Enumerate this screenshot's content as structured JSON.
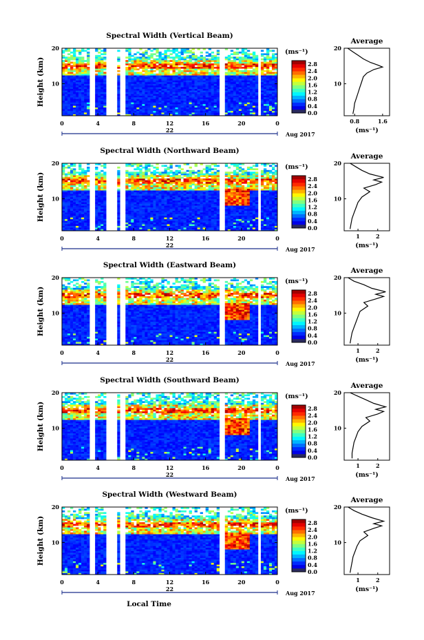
{
  "figure": {
    "xlabel": "Local Time",
    "date_label": "Aug 2017",
    "colorbar_unit": "(ms⁻¹)",
    "average_title": "Average",
    "average_unit": "(ms⁻¹)"
  },
  "chart_data": [
    {
      "type": "heatmap",
      "title": "Spectral Width (Vertical Beam)",
      "ylabel": "Height (km)",
      "x_ticks": [
        "0",
        "4",
        "8",
        "12",
        "16",
        "20",
        "0"
      ],
      "day_label": "22",
      "y_ticks": [
        "20",
        "10"
      ],
      "xlim": [
        0,
        24
      ],
      "ylim": [
        1,
        20
      ],
      "colorbar_ticks": [
        "2.8",
        "2.4",
        "2.0",
        "1.6",
        "1.2",
        "0.8",
        "0.4",
        "0.0"
      ],
      "colorbar_range": [
        0,
        3.0
      ],
      "gaps_hours": [
        [
          3.2,
          3.6
        ],
        [
          4.9,
          6.0
        ],
        [
          6.4,
          7.0
        ],
        [
          17.6,
          18.0
        ],
        [
          21.8,
          22.2
        ],
        [
          23.0,
          23.2
        ]
      ],
      "profile": {
        "x_ticks": [
          "0.8",
          "1.6"
        ],
        "xlim": [
          0.5,
          1.8
        ],
        "y_ticks": [
          "20",
          "10"
        ],
        "heights_km": [
          1.5,
          3,
          4.5,
          6,
          7.5,
          9,
          10.5,
          12,
          13,
          14,
          14.7,
          15.3,
          16,
          17,
          18,
          19,
          20
        ],
        "values": [
          0.75,
          0.78,
          0.8,
          0.85,
          0.9,
          0.95,
          1.0,
          1.05,
          1.15,
          1.35,
          1.6,
          1.45,
          1.25,
          1.05,
          0.9,
          0.75,
          0.6
        ]
      }
    },
    {
      "type": "heatmap",
      "title": "Spectral Width (Northward Beam)",
      "ylabel": "Height (km)",
      "x_ticks": [
        "0",
        "4",
        "8",
        "12",
        "16",
        "20",
        "0"
      ],
      "day_label": "22",
      "y_ticks": [
        "20",
        "10"
      ],
      "xlim": [
        0,
        24
      ],
      "ylim": [
        1,
        20
      ],
      "colorbar_ticks": [
        "2.8",
        "2.4",
        "2.0",
        "1.6",
        "1.2",
        "0.8",
        "0.4",
        "0.0"
      ],
      "colorbar_range": [
        0,
        3.0
      ],
      "gaps_hours": [
        [
          3.2,
          3.6
        ],
        [
          4.9,
          6.0
        ],
        [
          6.4,
          7.0
        ],
        [
          17.6,
          18.0
        ],
        [
          21.8,
          22.2
        ],
        [
          23.0,
          23.2
        ]
      ],
      "profile": {
        "x_ticks": [
          "1",
          "2"
        ],
        "xlim": [
          0.3,
          2.6
        ],
        "y_ticks": [
          "20",
          "10"
        ],
        "heights_km": [
          1.5,
          3,
          4.5,
          6,
          7.5,
          9,
          10.5,
          12,
          13,
          14,
          14.7,
          15.3,
          16,
          17,
          18,
          19,
          20
        ],
        "values": [
          0.6,
          0.65,
          0.7,
          0.8,
          0.9,
          1.0,
          1.2,
          1.6,
          1.3,
          1.9,
          2.2,
          1.8,
          2.3,
          1.6,
          1.2,
          0.9,
          0.6
        ]
      }
    },
    {
      "type": "heatmap",
      "title": "Spectral Width (Eastward Beam)",
      "ylabel": "Height (km)",
      "x_ticks": [
        "0",
        "4",
        "8",
        "12",
        "16",
        "20",
        "0"
      ],
      "day_label": "22",
      "y_ticks": [
        "20",
        "10"
      ],
      "xlim": [
        0,
        24
      ],
      "ylim": [
        1,
        20
      ],
      "colorbar_ticks": [
        "2.8",
        "2.4",
        "2.0",
        "1.6",
        "1.2",
        "0.8",
        "0.4",
        "0.0"
      ],
      "colorbar_range": [
        0,
        3.0
      ],
      "gaps_hours": [
        [
          3.2,
          3.6
        ],
        [
          4.9,
          6.0
        ],
        [
          6.4,
          7.0
        ],
        [
          17.6,
          18.0
        ],
        [
          21.8,
          22.2
        ],
        [
          23.0,
          23.2
        ]
      ],
      "profile": {
        "x_ticks": [
          "1",
          "2"
        ],
        "xlim": [
          0.3,
          2.6
        ],
        "y_ticks": [
          "20",
          "10"
        ],
        "heights_km": [
          1.5,
          3,
          4.5,
          6,
          7.5,
          9,
          10.5,
          12,
          13,
          14,
          14.7,
          15.3,
          16,
          17,
          18,
          19,
          20
        ],
        "values": [
          0.6,
          0.65,
          0.7,
          0.8,
          0.9,
          1.0,
          1.1,
          1.5,
          1.3,
          1.9,
          2.3,
          1.9,
          2.4,
          1.7,
          1.3,
          0.8,
          0.5
        ]
      }
    },
    {
      "type": "heatmap",
      "title": "Spectral Width (Southward Beam)",
      "ylabel": "Height (km)",
      "x_ticks": [
        "0",
        "4",
        "8",
        "12",
        "16",
        "20",
        "0"
      ],
      "day_label": "22",
      "y_ticks": [
        "20",
        "10"
      ],
      "xlim": [
        0,
        24
      ],
      "ylim": [
        1,
        20
      ],
      "colorbar_ticks": [
        "2.8",
        "2.4",
        "2.0",
        "1.6",
        "1.2",
        "0.8",
        "0.4",
        "0.0"
      ],
      "colorbar_range": [
        0,
        3.0
      ],
      "gaps_hours": [
        [
          3.2,
          3.6
        ],
        [
          4.9,
          6.0
        ],
        [
          6.4,
          7.0
        ],
        [
          17.6,
          18.0
        ],
        [
          21.8,
          22.2
        ],
        [
          23.0,
          23.2
        ]
      ],
      "profile": {
        "x_ticks": [
          "1",
          "2"
        ],
        "xlim": [
          0.3,
          2.6
        ],
        "y_ticks": [
          "20",
          "10"
        ],
        "heights_km": [
          1.5,
          3,
          4.5,
          6,
          7.5,
          9,
          10.5,
          12,
          13,
          14,
          14.7,
          15.3,
          16,
          17,
          18,
          19,
          20
        ],
        "values": [
          0.7,
          0.7,
          0.75,
          0.8,
          0.9,
          1.0,
          1.2,
          1.6,
          1.4,
          2.0,
          2.3,
          1.9,
          2.4,
          1.8,
          1.4,
          1.0,
          0.6
        ]
      }
    },
    {
      "type": "heatmap",
      "title": "Spectral Width (Westward Beam)",
      "ylabel": "Height (km)",
      "x_ticks": [
        "0",
        "4",
        "8",
        "12",
        "16",
        "20",
        "0"
      ],
      "day_label": "22",
      "y_ticks": [
        "20",
        "10"
      ],
      "xlim": [
        0,
        24
      ],
      "ylim": [
        1,
        20
      ],
      "colorbar_ticks": [
        "2.8",
        "2.4",
        "2.0",
        "1.6",
        "1.2",
        "0.8",
        "0.4",
        "0.0"
      ],
      "colorbar_range": [
        0,
        3.0
      ],
      "gaps_hours": [
        [
          3.2,
          3.6
        ],
        [
          4.9,
          6.0
        ],
        [
          6.4,
          7.0
        ],
        [
          17.6,
          18.0
        ],
        [
          21.8,
          22.2
        ],
        [
          23.0,
          23.2
        ]
      ],
      "profile": {
        "x_ticks": [
          "1",
          "2"
        ],
        "xlim": [
          0.3,
          2.6
        ],
        "y_ticks": [
          "20",
          "10"
        ],
        "heights_km": [
          1.5,
          3,
          4.5,
          6,
          7.5,
          9,
          10.5,
          12,
          13,
          14,
          14.7,
          15.3,
          16,
          17,
          18,
          19,
          20
        ],
        "values": [
          0.6,
          0.65,
          0.7,
          0.75,
          0.85,
          0.95,
          1.1,
          1.5,
          1.3,
          1.8,
          2.2,
          1.8,
          2.3,
          1.7,
          1.2,
          0.8,
          0.5
        ]
      }
    }
  ]
}
